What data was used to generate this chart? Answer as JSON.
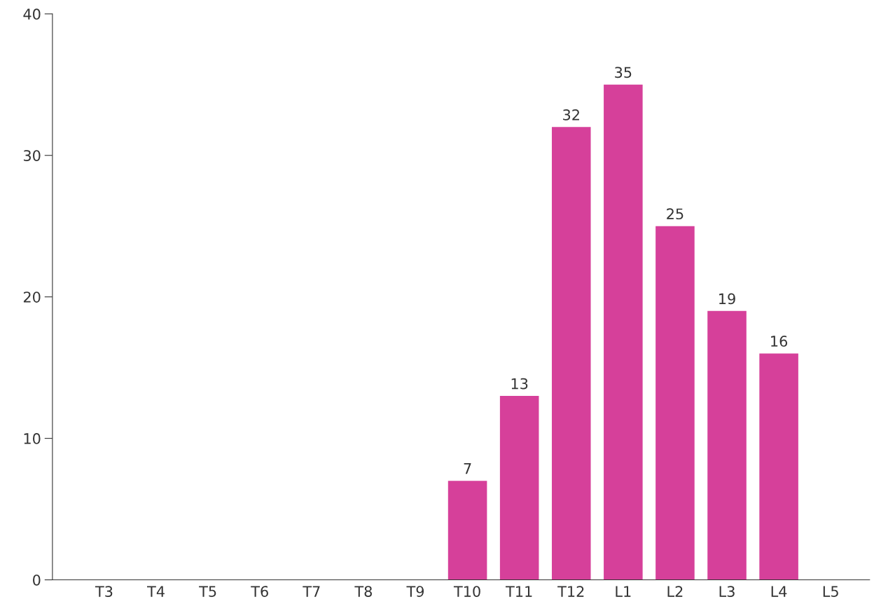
{
  "chart_data": {
    "type": "bar",
    "categories": [
      "T3",
      "T4",
      "T5",
      "T6",
      "T7",
      "T8",
      "T9",
      "T10",
      "T11",
      "T12",
      "L1",
      "L2",
      "L3",
      "L4",
      "L5"
    ],
    "values": [
      0,
      0,
      0,
      0,
      0,
      0,
      0,
      7,
      13,
      32,
      35,
      25,
      19,
      16,
      0
    ],
    "value_labels": [
      null,
      null,
      null,
      null,
      null,
      null,
      null,
      "7",
      "13",
      "32",
      "35",
      "25",
      "19",
      "16",
      null
    ],
    "color": "#d6409a",
    "ylim": [
      0,
      40
    ],
    "yticks": [
      0,
      10,
      20,
      30,
      40
    ],
    "grid": false,
    "legend": false
  }
}
